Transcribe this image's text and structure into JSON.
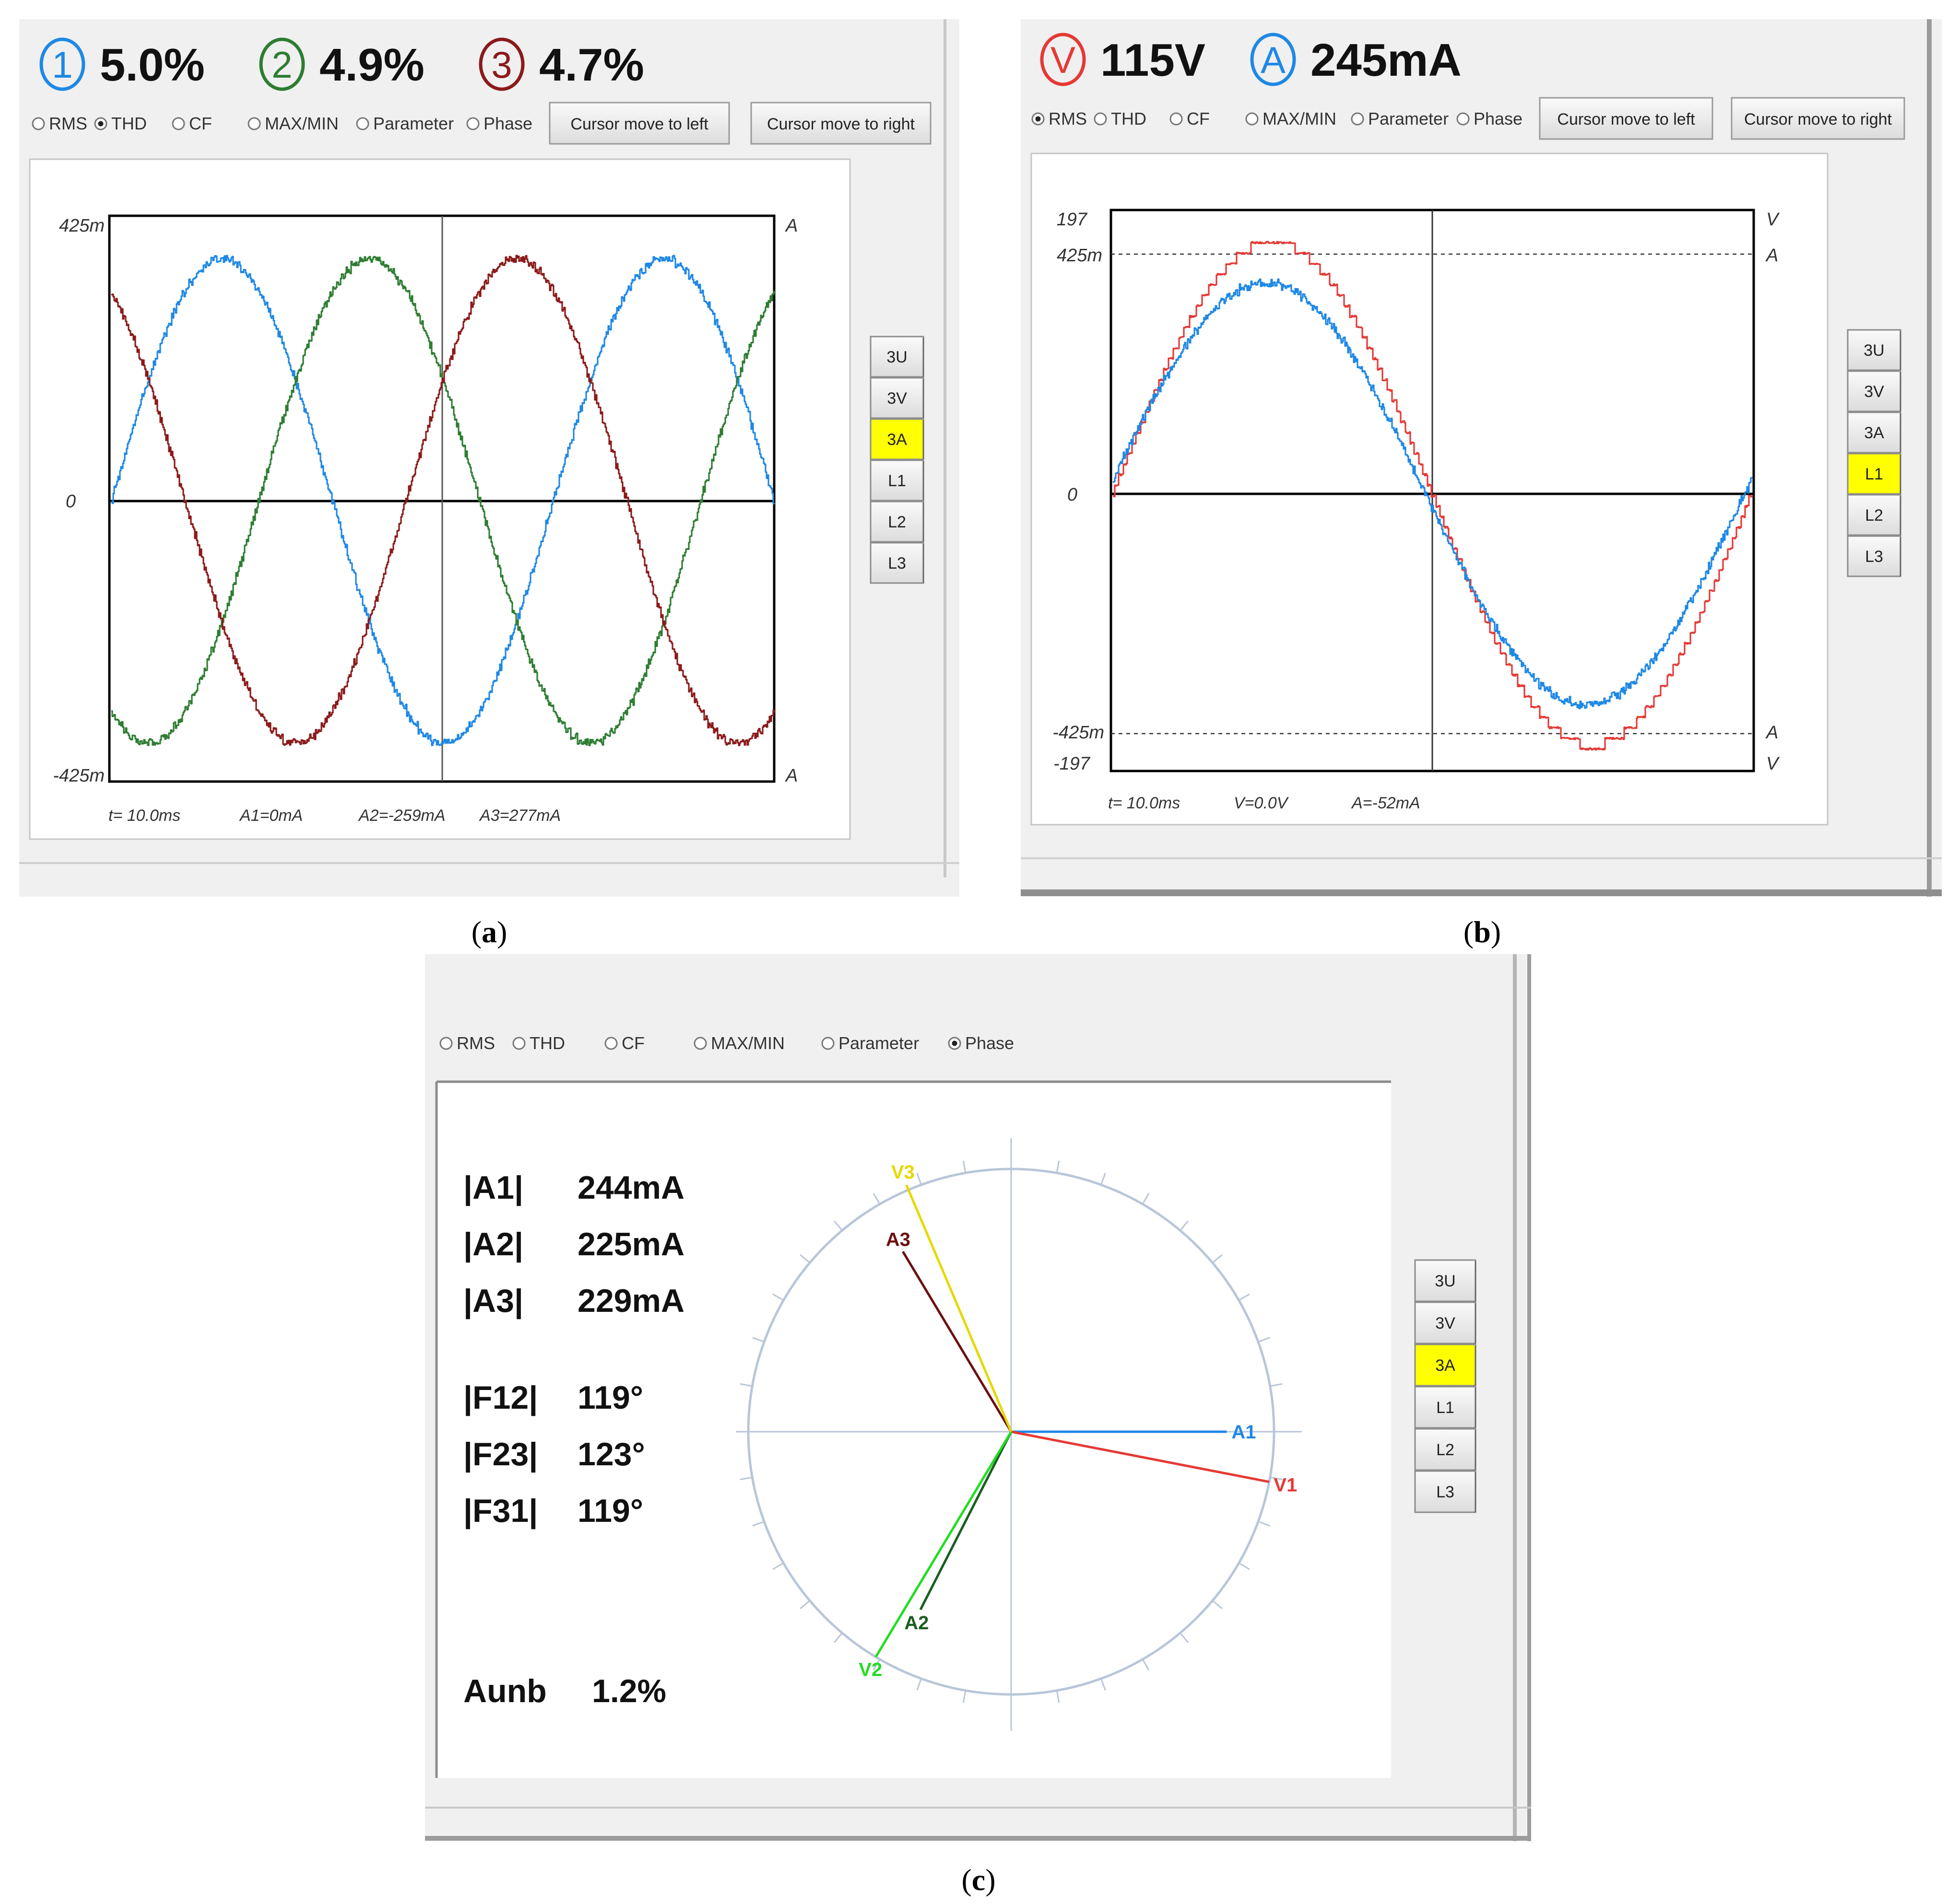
{
  "panels": {
    "a": {
      "caption": "a",
      "headline": [
        {
          "symbol": "1",
          "value": "5.0%",
          "color": "#1e88e5"
        },
        {
          "symbol": "2",
          "value": "4.9%",
          "color": "#2e7d32"
        },
        {
          "symbol": "3",
          "value": "4.7%",
          "color": "#8b1a1a"
        }
      ],
      "modes": [
        {
          "label": "RMS",
          "selected": false
        },
        {
          "label": "THD",
          "selected": true
        },
        {
          "label": "CF",
          "selected": false
        },
        {
          "label": "MAX/MIN",
          "selected": false
        },
        {
          "label": "Parameter",
          "selected": false
        },
        {
          "label": "Phase",
          "selected": false
        }
      ],
      "cursor_left_label": "Cursor move to left",
      "cursor_right_label": "Cursor move to right",
      "side_buttons": [
        {
          "label": "3U",
          "active": false
        },
        {
          "label": "3V",
          "active": false
        },
        {
          "label": "3A",
          "active": true
        },
        {
          "label": "L1",
          "active": false
        },
        {
          "label": "L2",
          "active": false
        },
        {
          "label": "L3",
          "active": false
        }
      ],
      "axis": {
        "top": "425m",
        "zero": "0",
        "bottom": "-425m",
        "unit_top": "A",
        "unit_bottom": "A"
      },
      "readouts": {
        "t": "t= 10.0ms",
        "a1": "A1=0mA",
        "a2": "A2=-259mA",
        "a3": "A3=277mA"
      }
    },
    "b": {
      "caption": "b",
      "headline": [
        {
          "symbol": "V",
          "value": "115V",
          "color": "#e53935"
        },
        {
          "symbol": "A",
          "value": "245mA",
          "color": "#1e88e5"
        }
      ],
      "modes": [
        {
          "label": "RMS",
          "selected": true
        },
        {
          "label": "THD",
          "selected": false
        },
        {
          "label": "CF",
          "selected": false
        },
        {
          "label": "MAX/MIN",
          "selected": false
        },
        {
          "label": "Parameter",
          "selected": false
        },
        {
          "label": "Phase",
          "selected": false
        }
      ],
      "cursor_left_label": "Cursor move to left",
      "cursor_right_label": "Cursor move to right",
      "side_buttons": [
        {
          "label": "3U",
          "active": false
        },
        {
          "label": "3V",
          "active": false
        },
        {
          "label": "3A",
          "active": false
        },
        {
          "label": "L1",
          "active": true
        },
        {
          "label": "L2",
          "active": false
        },
        {
          "label": "L3",
          "active": false
        }
      ],
      "axis": {
        "v_top": "197",
        "a_top": "425m",
        "zero": "0",
        "a_bottom": "-425m",
        "v_bottom": "-197",
        "unit_v": "V",
        "unit_a": "A"
      },
      "readouts": {
        "t": "t= 10.0ms",
        "v": "V=0.0V",
        "a": "A=-52mA"
      }
    },
    "c": {
      "caption": "c",
      "modes": [
        {
          "label": "RMS",
          "selected": false
        },
        {
          "label": "THD",
          "selected": false
        },
        {
          "label": "CF",
          "selected": false
        },
        {
          "label": "MAX/MIN",
          "selected": false
        },
        {
          "label": "Parameter",
          "selected": false
        },
        {
          "label": "Phase",
          "selected": true
        }
      ],
      "side_buttons": [
        {
          "label": "3U",
          "active": false
        },
        {
          "label": "3V",
          "active": false
        },
        {
          "label": "3A",
          "active": true
        },
        {
          "label": "L1",
          "active": false
        },
        {
          "label": "L2",
          "active": false
        },
        {
          "label": "L3",
          "active": false
        }
      ],
      "magnitudes": [
        {
          "label": "|A1|",
          "value": "244mA"
        },
        {
          "label": "|A2|",
          "value": "225mA"
        },
        {
          "label": "|A3|",
          "value": "229mA"
        }
      ],
      "angles": [
        {
          "label": "|F12|",
          "value": "119°"
        },
        {
          "label": "|F23|",
          "value": "123°"
        },
        {
          "label": "|F31|",
          "value": "119°"
        }
      ],
      "unbalance": {
        "label": "Aunb",
        "value": "1.2%"
      },
      "phasors": [
        {
          "name": "A1",
          "angle_deg": 0,
          "length": 0.82,
          "color": "#1e88e5"
        },
        {
          "name": "V1",
          "angle_deg": -11,
          "length": 1.0,
          "color": "#e53935"
        },
        {
          "name": "A2",
          "angle_deg": -117,
          "length": 0.76,
          "color": "#1b5e20"
        },
        {
          "name": "V2",
          "angle_deg": -121,
          "length": 1.0,
          "color": "#22dd22"
        },
        {
          "name": "A3",
          "angle_deg": 121,
          "length": 0.8,
          "color": "#6d1010"
        },
        {
          "name": "V3",
          "angle_deg": 113,
          "length": 1.02,
          "color": "#e6d800"
        }
      ]
    }
  },
  "colors": {
    "window_bg": "#f0f0f0",
    "button_bg": "#e4e4e4",
    "active_button": "#ffff00",
    "circle": "#b8c6d8"
  }
}
